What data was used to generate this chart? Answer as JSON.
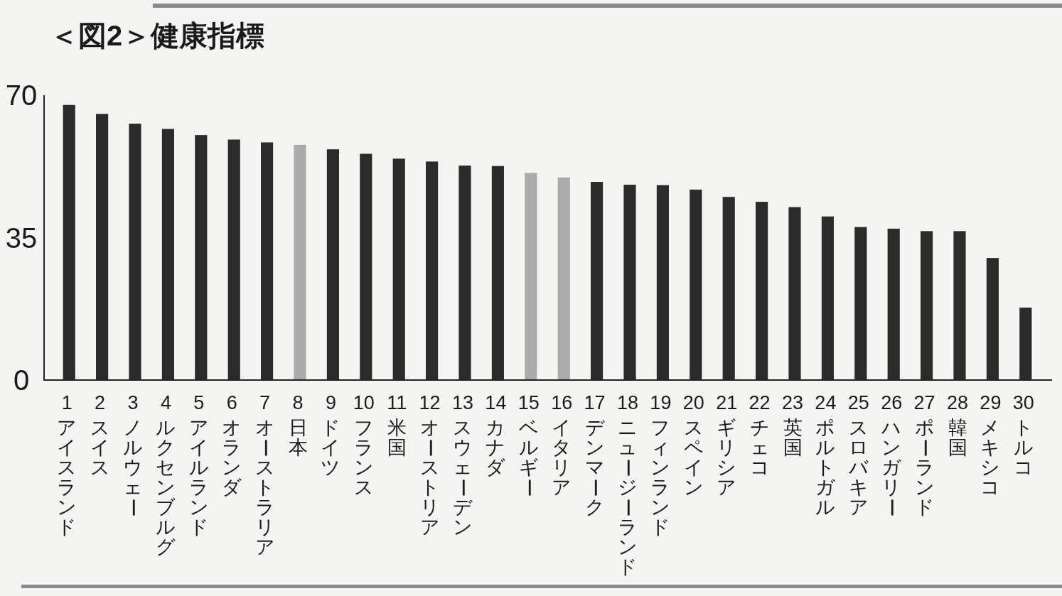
{
  "chart_data": {
    "type": "bar",
    "title": "＜図2＞健康指標",
    "categories": [
      "1 アイスランド",
      "2 スイス",
      "3 ノルウェー",
      "4 ルクセンブルグ",
      "5 アイルランド",
      "6 オランダ",
      "7 オーストラリア",
      "8 日本",
      "9 ドイツ",
      "10 フランス",
      "11 米国",
      "12 オーストリア",
      "13 スウェーデン",
      "14 カナダ",
      "15 ベルギー",
      "16 イタリア",
      "17 デンマーク",
      "18 ニュージーランド",
      "19 フィンランド",
      "20 スペイン",
      "21 ギリシア",
      "22 チェコ",
      "23 英国",
      "24 ポルトガル",
      "25 スロバキア",
      "26 ハンガリー",
      "27 ポーランド",
      "28 韓国",
      "29 メキシコ",
      "30 トルコ"
    ],
    "values": [
      67.6,
      65.4,
      63.0,
      61.7,
      60.2,
      59.1,
      58.4,
      57.8,
      56.7,
      55.6,
      54.4,
      53.7,
      52.7,
      52.6,
      50.9,
      49.8,
      48.7,
      48.0,
      47.9,
      46.8,
      45.0,
      43.8,
      42.5,
      40.2,
      37.6,
      37.2,
      36.6,
      36.6,
      30.0,
      17.8
    ],
    "colors": [
      "#2b2b2b",
      "#2b2b2b",
      "#2b2b2b",
      "#2b2b2b",
      "#2b2b2b",
      "#2b2b2b",
      "#2b2b2b",
      "#ababab",
      "#2b2b2b",
      "#2b2b2b",
      "#2b2b2b",
      "#2b2b2b",
      "#2b2b2b",
      "#2b2b2b",
      "#ababab",
      "#ababab",
      "#2b2b2b",
      "#2b2b2b",
      "#2b2b2b",
      "#2b2b2b",
      "#2b2b2b",
      "#2b2b2b",
      "#2b2b2b",
      "#2b2b2b",
      "#2b2b2b",
      "#2b2b2b",
      "#2b2b2b",
      "#2b2b2b",
      "#2b2b2b",
      "#2b2b2b"
    ],
    "ylim": [
      0,
      70
    ],
    "yticks": [
      0,
      35,
      70
    ]
  }
}
